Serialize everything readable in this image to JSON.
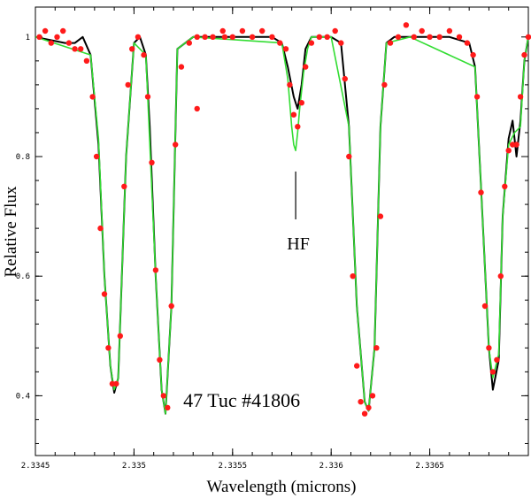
{
  "chart_data": {
    "type": "line",
    "title": "",
    "xlabel": "Wavelength (microns)",
    "ylabel": "Relative Flux",
    "xlim": [
      2.3345,
      2.337
    ],
    "ylim": [
      0.3,
      1.05
    ],
    "x_ticks": [
      2.3345,
      2.335,
      2.3355,
      2.336,
      2.3365
    ],
    "x_tick_labels": [
      "2.3345",
      "2.335",
      "2.3355",
      "2.336",
      "2.3365"
    ],
    "y_ticks": [
      0.4,
      0.6,
      0.8,
      1.0
    ],
    "y_tick_labels": [
      "0.4",
      "0.6",
      "0.8",
      "1"
    ],
    "annotations": [
      {
        "name": "star-id",
        "text": "47 Tuc #41806",
        "x": 2.33525,
        "y": 0.39
      },
      {
        "name": "hf-marker",
        "text": "HF",
        "x": 2.33582,
        "y": 0.74
      }
    ],
    "series": [
      {
        "name": "synthetic-black",
        "color": "#000000",
        "style": "line",
        "x": [
          2.3345,
          2.33465,
          2.3347,
          2.33474,
          2.33478,
          2.33482,
          2.33485,
          2.33488,
          2.3349,
          2.33492,
          2.33496,
          2.335,
          2.33503,
          2.33506,
          2.33508,
          2.33511,
          2.33514,
          2.33516,
          2.33519,
          2.33522,
          2.3353,
          2.3355,
          2.3357,
          2.33575,
          2.33578,
          2.33581,
          2.33583,
          2.33585,
          2.33587,
          2.3359,
          2.336,
          2.33605,
          2.33609,
          2.33613,
          2.33617,
          2.33619,
          2.33622,
          2.33625,
          2.33628,
          2.33632,
          2.33635,
          2.3364,
          2.3366,
          2.3367,
          2.33673,
          2.33676,
          2.3368,
          2.33682,
          2.33685,
          2.33687,
          2.3369,
          2.33692,
          2.33694,
          2.33696,
          2.33698,
          2.337
        ],
        "y": [
          1.0,
          0.99,
          0.99,
          1.0,
          0.97,
          0.82,
          0.6,
          0.45,
          0.405,
          0.43,
          0.8,
          0.99,
          1.0,
          0.97,
          0.85,
          0.6,
          0.41,
          0.37,
          0.55,
          0.98,
          1.0,
          1.0,
          1.0,
          0.99,
          0.95,
          0.9,
          0.88,
          0.92,
          0.98,
          1.0,
          1.0,
          0.99,
          0.85,
          0.55,
          0.39,
          0.375,
          0.48,
          0.85,
          0.99,
          1.0,
          1.0,
          1.0,
          1.0,
          0.99,
          0.95,
          0.75,
          0.48,
          0.41,
          0.46,
          0.7,
          0.83,
          0.86,
          0.8,
          0.86,
          0.96,
          1.0
        ]
      },
      {
        "name": "synthetic-green",
        "color": "#33dd33",
        "style": "line",
        "x": [
          2.3345,
          2.33478,
          2.33482,
          2.33485,
          2.33488,
          2.3349,
          2.33492,
          2.33496,
          2.335,
          2.33506,
          2.33511,
          2.33514,
          2.33516,
          2.33519,
          2.33522,
          2.3353,
          2.33575,
          2.33578,
          2.3358,
          2.33581,
          2.33582,
          2.33583,
          2.33584,
          2.33586,
          2.33588,
          2.3359,
          2.336,
          2.33609,
          2.33613,
          2.33617,
          2.33619,
          2.33622,
          2.33625,
          2.33628,
          2.3364,
          2.33673,
          2.33676,
          2.3368,
          2.33682,
          2.33685,
          2.33687,
          2.3369,
          2.33693,
          2.33696,
          2.33698,
          2.337
        ],
        "y": [
          1.0,
          0.97,
          0.83,
          0.6,
          0.45,
          0.41,
          0.43,
          0.8,
          0.99,
          0.97,
          0.6,
          0.41,
          0.37,
          0.55,
          0.98,
          1.0,
          0.99,
          0.93,
          0.85,
          0.82,
          0.81,
          0.84,
          0.88,
          0.94,
          0.98,
          1.0,
          1.0,
          0.85,
          0.55,
          0.39,
          0.375,
          0.48,
          0.85,
          0.99,
          1.0,
          0.95,
          0.75,
          0.48,
          0.43,
          0.47,
          0.7,
          0.82,
          0.84,
          0.85,
          0.96,
          1.0
        ]
      },
      {
        "name": "observed-red",
        "color": "#ff1a1a",
        "style": "points",
        "x": [
          2.33452,
          2.33455,
          2.33458,
          2.33461,
          2.33464,
          2.33467,
          2.3347,
          2.33473,
          2.33476,
          2.33479,
          2.33481,
          2.33483,
          2.33485,
          2.33487,
          2.33489,
          2.33491,
          2.33493,
          2.33495,
          2.33497,
          2.33499,
          2.33502,
          2.33505,
          2.33507,
          2.33509,
          2.33511,
          2.33513,
          2.33515,
          2.33517,
          2.33519,
          2.33521,
          2.33524,
          2.33528,
          2.33532,
          2.33536,
          2.3354,
          2.33545,
          2.3355,
          2.33555,
          2.3356,
          2.33565,
          2.3357,
          2.33574,
          2.33577,
          2.33579,
          2.33581,
          2.33583,
          2.33585,
          2.33587,
          2.3359,
          2.33594,
          2.33598,
          2.33602,
          2.33605,
          2.33607,
          2.33609,
          2.33611,
          2.33613,
          2.33615,
          2.33617,
          2.33619,
          2.33621,
          2.33623,
          2.33625,
          2.33627,
          2.3363,
          2.33634,
          2.33638,
          2.33642,
          2.33646,
          2.3365,
          2.33655,
          2.3366,
          2.33665,
          2.33669,
          2.33672,
          2.33674,
          2.33676,
          2.33678,
          2.3368,
          2.33682,
          2.33684,
          2.33686,
          2.33688,
          2.3369,
          2.33692,
          2.33694,
          2.33696,
          2.33698,
          2.337,
          2.33532,
          2.33546
        ],
        "y": [
          1.0,
          1.01,
          0.99,
          1.0,
          1.01,
          0.99,
          0.98,
          0.98,
          0.96,
          0.9,
          0.8,
          0.68,
          0.57,
          0.48,
          0.42,
          0.42,
          0.5,
          0.75,
          0.92,
          0.98,
          1.0,
          0.97,
          0.9,
          0.79,
          0.61,
          0.46,
          0.4,
          0.38,
          0.55,
          0.82,
          0.95,
          0.99,
          1.0,
          1.0,
          1.0,
          1.01,
          1.0,
          1.01,
          1.0,
          1.01,
          1.0,
          0.99,
          0.98,
          0.92,
          0.87,
          0.85,
          0.89,
          0.95,
          0.99,
          1.0,
          1.0,
          1.01,
          0.99,
          0.93,
          0.8,
          0.6,
          0.45,
          0.39,
          0.37,
          0.38,
          0.4,
          0.48,
          0.7,
          0.92,
          0.99,
          1.0,
          1.02,
          1.0,
          1.01,
          1.0,
          1.0,
          1.01,
          1.0,
          0.99,
          0.97,
          0.9,
          0.74,
          0.55,
          0.48,
          0.44,
          0.46,
          0.6,
          0.75,
          0.81,
          0.82,
          0.82,
          0.9,
          0.97,
          1.0,
          0.88,
          1.0
        ]
      }
    ]
  }
}
